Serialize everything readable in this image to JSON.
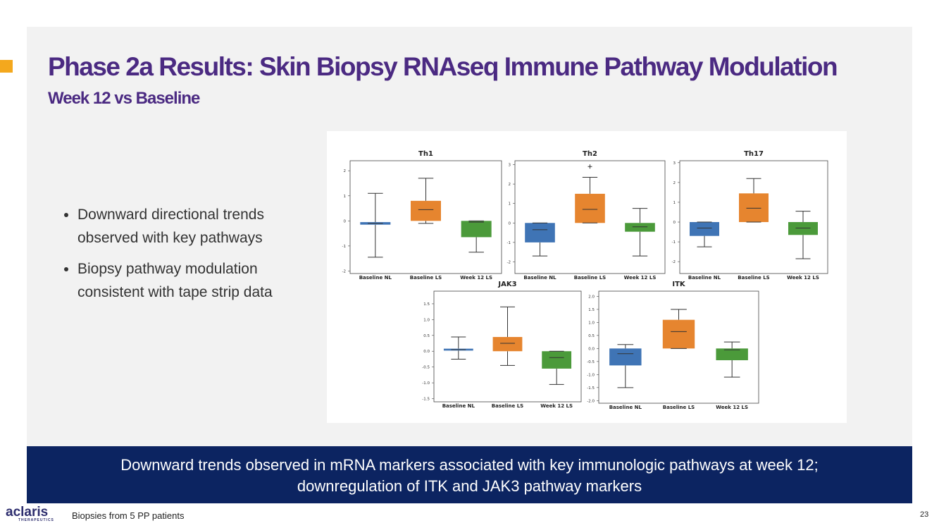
{
  "header": {
    "title": "Phase 2a Results: Skin Biopsy RNAseq Immune Pathway Modulation",
    "subtitle": "Week 12 vs Baseline"
  },
  "bullets": [
    "Downward directional trends observed with key pathways",
    "Biopsy pathway modulation consistent with tape strip data"
  ],
  "banner": [
    "Downward trends observed in mRNA markers associated with key immunologic pathways at week 12;",
    "downregulation of ITK and JAK3 pathway markers"
  ],
  "logo": {
    "name": "aclaris",
    "tagline": "THERAPEUTICS"
  },
  "footer": {
    "note": "Biopsies from 5 PP patients",
    "page_number": "23"
  },
  "chart_data": [
    {
      "type": "box",
      "title": "Th1",
      "categories": [
        "Baseline NL",
        "Baseline LS",
        "Week 12 LS"
      ],
      "colors": [
        "#3f74b5",
        "#e6852f",
        "#4b9a3a"
      ],
      "ylim": [
        -2.1,
        2.4
      ],
      "yticks": [
        -2,
        -1,
        0,
        1,
        2
      ],
      "boxes": [
        {
          "whislo": -1.45,
          "q1": -0.15,
          "med": -0.1,
          "q3": -0.05,
          "whishi": 1.1
        },
        {
          "whislo": -0.1,
          "q1": 0,
          "med": 0.45,
          "q3": 0.8,
          "whishi": 1.7
        },
        {
          "whislo": -1.25,
          "q1": -0.65,
          "med": -0.05,
          "q3": 0,
          "whishi": 0
        }
      ]
    },
    {
      "type": "box",
      "title": "Th2",
      "categories": [
        "Baseline NL",
        "Baseline LS",
        "Week 12 LS"
      ],
      "colors": [
        "#3f74b5",
        "#e6852f",
        "#4b9a3a"
      ],
      "ylim": [
        -2.6,
        3.2
      ],
      "yticks": [
        -2,
        -1,
        0,
        1,
        2,
        3
      ],
      "boxes": [
        {
          "whislo": -1.7,
          "q1": -1.0,
          "med": -0.35,
          "q3": 0,
          "whishi": 0
        },
        {
          "whislo": 0,
          "q1": 0,
          "med": 0.7,
          "q3": 1.5,
          "whishi": 2.35,
          "fliers": [
            2.9
          ]
        },
        {
          "whislo": -1.7,
          "q1": -0.45,
          "med": -0.2,
          "q3": 0,
          "whishi": 0.75
        }
      ]
    },
    {
      "type": "box",
      "title": "Th17",
      "categories": [
        "Baseline NL",
        "Baseline LS",
        "Week 12 LS"
      ],
      "colors": [
        "#3f74b5",
        "#e6852f",
        "#4b9a3a"
      ],
      "ylim": [
        -2.6,
        3.1
      ],
      "yticks": [
        -2,
        -1,
        0,
        1,
        2,
        3
      ],
      "boxes": [
        {
          "whislo": -1.25,
          "q1": -0.7,
          "med": -0.3,
          "q3": 0,
          "whishi": 0
        },
        {
          "whislo": 0,
          "q1": 0,
          "med": 0.7,
          "q3": 1.45,
          "whishi": 2.2
        },
        {
          "whislo": -1.85,
          "q1": -0.65,
          "med": -0.3,
          "q3": 0,
          "whishi": 0.55
        }
      ]
    },
    {
      "type": "box",
      "title": "JAK3",
      "categories": [
        "Baseline NL",
        "Baseline LS",
        "Week 12 LS"
      ],
      "colors": [
        "#3f74b5",
        "#e6852f",
        "#4b9a3a"
      ],
      "ylim": [
        -1.6,
        1.9
      ],
      "yticks": [
        -1.5,
        {
          "value": -1,
          "label": "-1.0"
        },
        -0.5,
        {
          "value": 0,
          "label": "0.0"
        },
        0.5,
        {
          "value": 1,
          "label": "1.0"
        },
        1.5
      ],
      "boxes": [
        {
          "whislo": -0.25,
          "q1": 0.02,
          "med": 0.05,
          "q3": 0.08,
          "whishi": 0.45
        },
        {
          "whislo": -0.45,
          "q1": 0,
          "med": 0.25,
          "q3": 0.45,
          "whishi": 1.4
        },
        {
          "whislo": -1.05,
          "q1": -0.55,
          "med": -0.2,
          "q3": 0,
          "whishi": 0
        }
      ]
    },
    {
      "type": "box",
      "title": "ITK",
      "categories": [
        "Baseline NL",
        "Baseline LS",
        "Week 12 LS"
      ],
      "colors": [
        "#3f74b5",
        "#e6852f",
        "#4b9a3a"
      ],
      "ylim": [
        -2.1,
        2.2
      ],
      "yticks": [
        {
          "value": -2,
          "label": "-2.0"
        },
        -1.5,
        {
          "value": -1,
          "label": "-1.0"
        },
        -0.5,
        {
          "value": 0,
          "label": "0.0"
        },
        0.5,
        {
          "value": 1,
          "label": "1.0"
        },
        1.5,
        {
          "value": 2,
          "label": "2.0"
        }
      ],
      "boxes": [
        {
          "whislo": -1.5,
          "q1": -0.65,
          "med": -0.2,
          "q3": 0,
          "whishi": 0.15
        },
        {
          "whislo": 0,
          "q1": 0,
          "med": 0.65,
          "q3": 1.1,
          "whishi": 1.5
        },
        {
          "whislo": -1.1,
          "q1": -0.45,
          "med": -0.05,
          "q3": 0,
          "whishi": 0.25
        }
      ]
    }
  ]
}
